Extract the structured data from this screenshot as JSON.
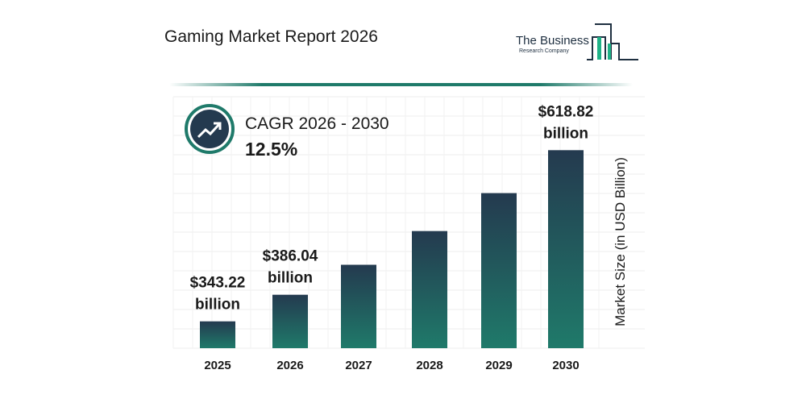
{
  "header": {
    "title": "Gaming Market Report 2026",
    "logo_line1": "The Business",
    "logo_line2": "Research Company"
  },
  "cagr": {
    "label": "CAGR 2026 - 2030",
    "value": "12.5%",
    "icon": "trending-up-icon"
  },
  "colors": {
    "bar_top": "#243a4f",
    "bar_bottom": "#1f7a6a",
    "accent": "#1f7a6a"
  },
  "chart_data": {
    "type": "bar",
    "categories": [
      "2025",
      "2026",
      "2027",
      "2028",
      "2029",
      "2030"
    ],
    "values": [
      343.22,
      386.04,
      434.3,
      488.6,
      549.7,
      618.82
    ],
    "data_labels": [
      [
        "$343.22",
        "billion"
      ],
      [
        "$386.04",
        "billion"
      ],
      null,
      null,
      null,
      [
        "$618.82",
        "billion"
      ]
    ],
    "title": "Gaming Market Report 2026",
    "xlabel": "",
    "ylabel": "Market Size (in USD Billion)",
    "ylim": [
      300,
      640
    ],
    "grid": true
  }
}
